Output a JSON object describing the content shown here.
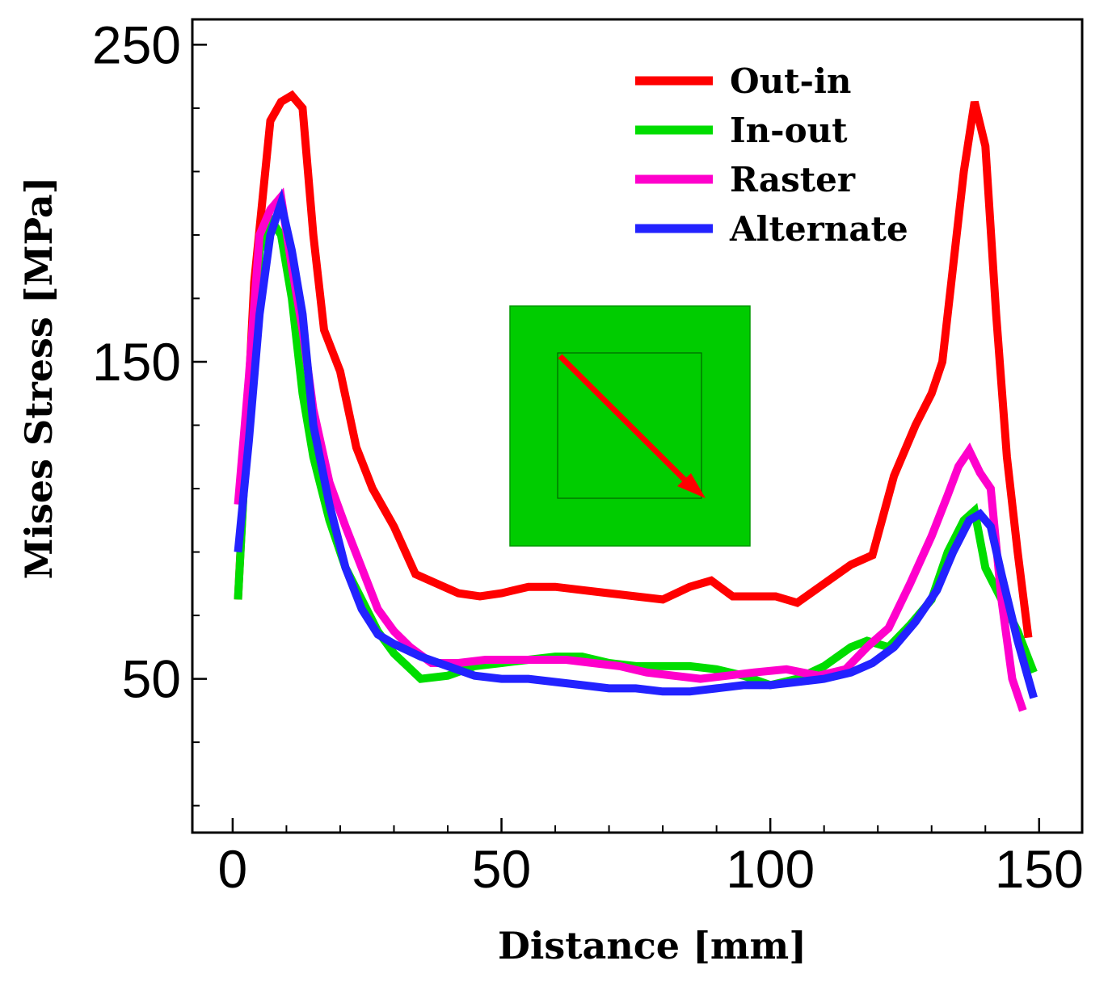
{
  "chart_data": {
    "type": "line",
    "title": "",
    "xlabel": "Distance [mm]",
    "ylabel": "Mises Stress [MPa]",
    "xlim": [
      -7.5,
      158
    ],
    "ylim": [
      1.5,
      258
    ],
    "x_ticks": [
      0,
      50,
      100,
      150
    ],
    "y_ticks": [
      50,
      150,
      250
    ],
    "x_minor_step": 10,
    "y_minor_step": 20,
    "grid": false,
    "legend_position": "top-right",
    "series": [
      {
        "name": "Out-in",
        "color": "#ff0000",
        "x": [
          1,
          4,
          7,
          9,
          11,
          13,
          15,
          17,
          20,
          23,
          26,
          30,
          34,
          38,
          42,
          46,
          50,
          55,
          60,
          65,
          70,
          75,
          80,
          85,
          89,
          93,
          97,
          101,
          105,
          110,
          115,
          119,
          123,
          127,
          130,
          132,
          134,
          136,
          138,
          140,
          142,
          144,
          146,
          148
        ],
        "y": [
          75,
          175,
          226,
          232,
          234,
          230,
          190,
          160,
          147,
          123,
          110,
          98,
          83,
          80,
          77,
          76,
          77,
          79,
          79,
          78,
          77,
          76,
          75,
          79,
          81,
          76,
          76,
          76,
          74,
          80,
          86,
          89,
          114,
          130,
          140,
          150,
          180,
          210,
          232,
          218,
          165,
          120,
          90,
          63
        ]
      },
      {
        "name": "In-out",
        "color": "#00dd00",
        "x": [
          1,
          3,
          5,
          7,
          9,
          11,
          13,
          15,
          18,
          21,
          24,
          27,
          30,
          35,
          40,
          45,
          50,
          55,
          60,
          65,
          70,
          75,
          80,
          85,
          90,
          95,
          100,
          105,
          110,
          115,
          118,
          122,
          126,
          130,
          133,
          136,
          138,
          140,
          143,
          146,
          149
        ],
        "y": [
          75,
          140,
          185,
          195,
          190,
          170,
          140,
          120,
          100,
          85,
          75,
          65,
          58,
          50,
          51,
          54,
          55,
          56,
          57,
          57,
          55,
          54,
          54,
          54,
          53,
          51,
          48,
          50,
          54,
          60,
          62,
          60,
          67,
          75,
          90,
          100,
          103,
          85,
          75,
          65,
          52
        ]
      },
      {
        "name": "Raster",
        "color": "#ff00cc",
        "x": [
          1,
          3,
          5,
          7,
          9,
          11,
          13,
          15,
          18,
          21,
          24,
          27,
          30,
          33,
          37,
          42,
          47,
          52,
          57,
          62,
          67,
          72,
          77,
          82,
          87,
          92,
          97,
          103,
          109,
          114,
          118,
          122,
          126,
          130,
          133,
          135,
          137,
          139,
          141,
          143,
          145,
          147
        ],
        "y": [
          105,
          145,
          190,
          198,
          202,
          180,
          160,
          135,
          112,
          98,
          85,
          72,
          65,
          60,
          55,
          55,
          56,
          56,
          56,
          56,
          55,
          54,
          52,
          51,
          50,
          51,
          52,
          53,
          51,
          53,
          60,
          66,
          80,
          95,
          108,
          117,
          122,
          115,
          110,
          75,
          50,
          40
        ]
      },
      {
        "name": "Alternate",
        "color": "#2222ff",
        "x": [
          1,
          3,
          5,
          7,
          9,
          11,
          13,
          15,
          18,
          21,
          24,
          27,
          30,
          35,
          40,
          45,
          50,
          55,
          60,
          65,
          70,
          75,
          80,
          85,
          90,
          95,
          100,
          105,
          110,
          115,
          119,
          123,
          127,
          131,
          134,
          137,
          139,
          141,
          143,
          146,
          149
        ],
        "y": [
          90,
          125,
          165,
          190,
          200,
          185,
          165,
          130,
          105,
          85,
          72,
          64,
          61,
          57,
          54,
          51,
          50,
          50,
          49,
          48,
          47,
          47,
          46,
          46,
          47,
          48,
          48,
          49,
          50,
          52,
          55,
          60,
          68,
          78,
          90,
          100,
          102,
          98,
          83,
          62,
          44
        ]
      }
    ]
  }
}
